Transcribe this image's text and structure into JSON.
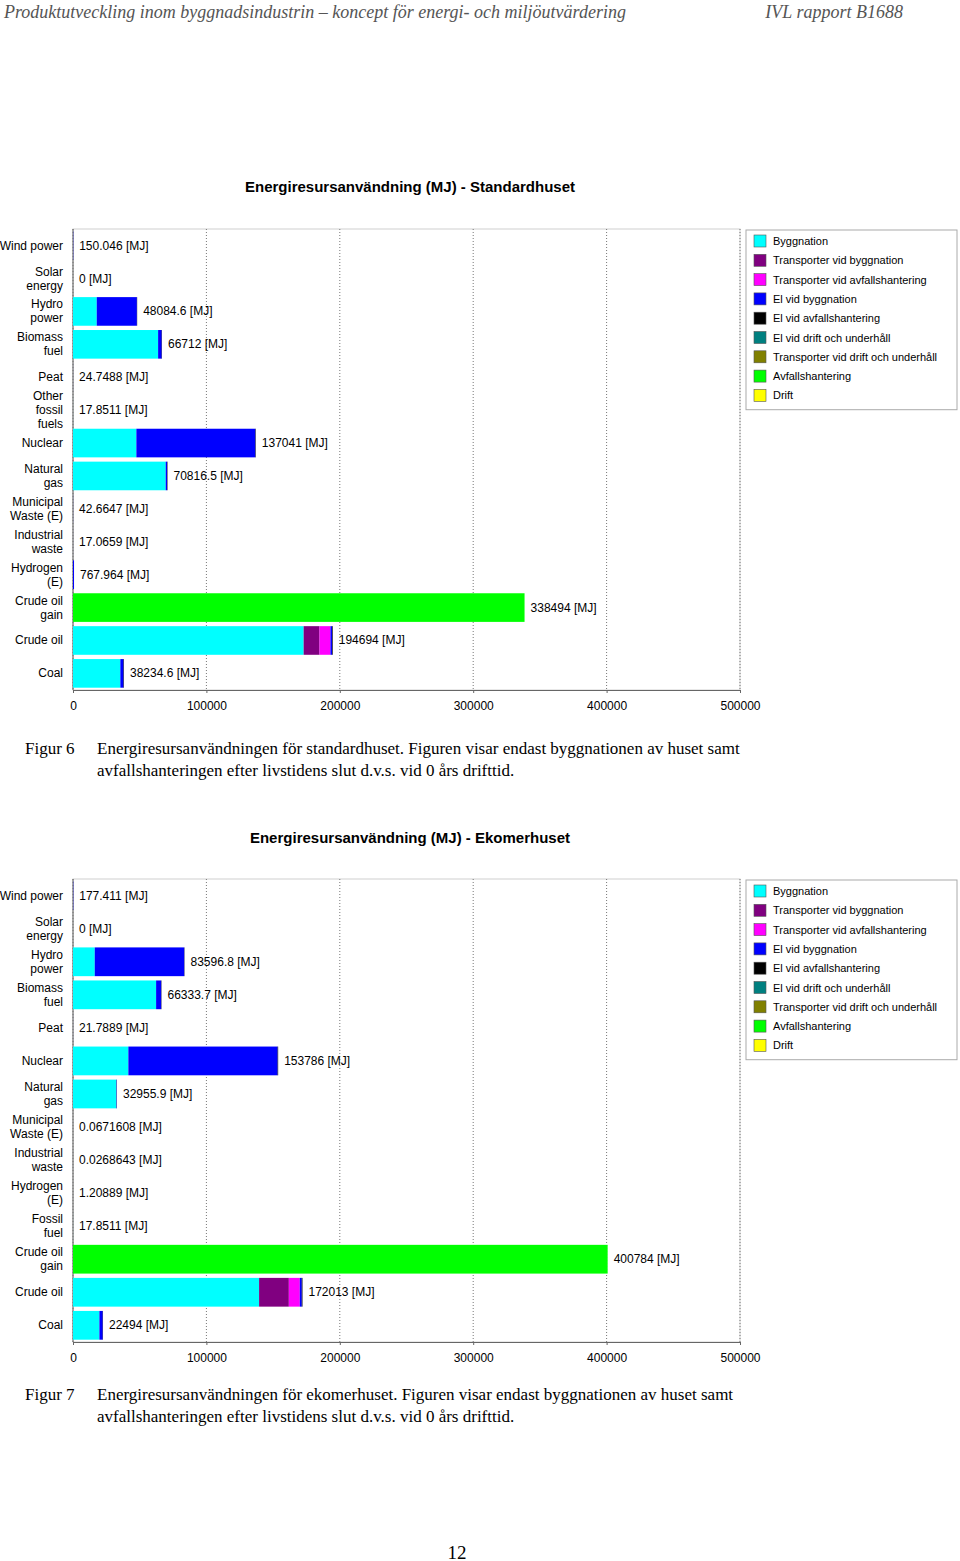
{
  "page": {
    "header_left": "Produktutveckling inom byggnadsindustrin – koncept för energi- och miljöutvärdering",
    "header_right": "IVL rapport B1688",
    "page_number": "12"
  },
  "chart_data": [
    {
      "type": "bar",
      "orientation": "horizontal",
      "stacked": true,
      "grid": true,
      "legend": "top-right",
      "title": "Energiresursanvändning (MJ) - Standardhuset",
      "caption": {
        "label": "Figur 6",
        "text": "Energiresursanvändningen för standardhuset. Figuren visar endast byggnationen av huset samt avfallshanteringen efter livstidens slut d.v.s. vid 0 års drifttid."
      },
      "categories": [
        "Wind power",
        "Solar energy",
        "Hydro power",
        "Biomass fuel",
        "Peat",
        "Other fossil fuels",
        "Nuclear",
        "Natural gas",
        "Municipal Waste (E)",
        "Industrial waste",
        "Hydrogen (E)",
        "Crude oil gain",
        "Crude oil",
        "Coal"
      ],
      "xlim": [
        0,
        500000
      ],
      "xticks": [
        0,
        100000,
        200000,
        300000,
        400000,
        500000
      ],
      "totals": [
        150.046,
        0,
        48084.6,
        66712,
        24.7488,
        17.8511,
        137041,
        70816.5,
        42.6647,
        17.0659,
        767.964,
        338494,
        194694,
        38234.6
      ],
      "total_labels": [
        "150.046 [MJ]",
        "0 [MJ]",
        "48084.6 [MJ]",
        "66712 [MJ]",
        "24.7488 [MJ]",
        "17.8511 [MJ]",
        "137041 [MJ]",
        "70816.5 [MJ]",
        "42.6647 [MJ]",
        "17.0659 [MJ]",
        "767.964 [MJ]",
        "338494 [MJ]",
        "194694 [MJ]",
        "38234.6 [MJ]"
      ],
      "series": [
        {
          "name": "Byggnation",
          "color": "#00ffff",
          "values": [
            0,
            0,
            17800,
            63800,
            0,
            17.8511,
            47500,
            69500,
            0,
            0,
            0,
            0,
            172900,
            35500
          ]
        },
        {
          "name": "Transporter vid byggnation",
          "color": "#800080",
          "values": [
            0,
            0,
            0,
            0,
            0,
            0,
            0,
            0,
            0,
            0,
            0,
            0,
            11900,
            0
          ]
        },
        {
          "name": "Transporter vid avfallshantering",
          "color": "#ff00ff",
          "values": [
            0,
            0,
            0,
            0,
            0,
            0,
            0,
            0,
            0,
            0,
            0,
            0,
            8200,
            0
          ]
        },
        {
          "name": "El vid byggnation",
          "color": "#0000ff",
          "values": [
            150.046,
            0,
            30084.6,
            2700,
            24.7488,
            0,
            89200,
            1000,
            42.6647,
            17.0659,
            767.964,
            0,
            1200,
            2400
          ]
        },
        {
          "name": "El vid avfallshantering",
          "color": "#000000",
          "values": [
            0,
            0,
            200,
            212,
            0,
            0,
            341,
            316.5,
            0,
            0,
            0,
            0,
            494,
            334.6
          ]
        },
        {
          "name": "El vid drift och underhåll",
          "color": "#008080",
          "values": [
            0,
            0,
            0,
            0,
            0,
            0,
            0,
            0,
            0,
            0,
            0,
            0,
            0,
            0
          ]
        },
        {
          "name": "Transporter vid drift och underhåll",
          "color": "#808000",
          "values": [
            0,
            0,
            0,
            0,
            0,
            0,
            0,
            0,
            0,
            0,
            0,
            0,
            0,
            0
          ]
        },
        {
          "name": "Avfallshantering",
          "color": "#00ff00",
          "values": [
            0,
            0,
            0,
            0,
            0,
            0,
            0,
            0,
            0,
            0,
            0,
            338494,
            0,
            0
          ]
        },
        {
          "name": "Drift",
          "color": "#ffff00",
          "values": [
            0,
            0,
            0,
            0,
            0,
            0,
            0,
            0,
            0,
            0,
            0,
            0,
            0,
            0
          ]
        }
      ]
    },
    {
      "type": "bar",
      "orientation": "horizontal",
      "stacked": true,
      "grid": true,
      "legend": "top-right",
      "title": "Energiresursanvändning (MJ) - Ekomerhuset",
      "caption": {
        "label": "Figur 7",
        "text": "Energiresursanvändningen för ekomerhuset. Figuren visar endast byggnationen av huset samt avfallshanteringen efter livstidens slut d.v.s. vid 0 års drifttid."
      },
      "categories": [
        "Wind power",
        "Solar energy",
        "Hydro power",
        "Biomass fuel",
        "Peat",
        "Nuclear",
        "Natural gas",
        "Municipal Waste (E)",
        "Industrial waste",
        "Hydrogen (E)",
        "Fossil fuel",
        "Crude oil gain",
        "Crude oil",
        "Coal"
      ],
      "xlim": [
        0,
        500000
      ],
      "xticks": [
        0,
        100000,
        200000,
        300000,
        400000,
        500000
      ],
      "totals": [
        177.411,
        0,
        83596.8,
        66333.7,
        21.7889,
        153786,
        32955.9,
        0.0671608,
        0.0268643,
        1.20889,
        17.8511,
        400784,
        172013,
        22494
      ],
      "total_labels": [
        "177.411 [MJ]",
        "0 [MJ]",
        "83596.8 [MJ]",
        "66333.7 [MJ]",
        "21.7889 [MJ]",
        "153786 [MJ]",
        "32955.9 [MJ]",
        "0.0671608 [MJ]",
        "0.0268643 [MJ]",
        "1.20889 [MJ]",
        "17.8511 [MJ]",
        "400784 [MJ]",
        "172013 [MJ]",
        "22494 [MJ]"
      ],
      "series": [
        {
          "name": "Byggnation",
          "color": "#00ffff",
          "values": [
            0,
            0,
            16300,
            62300,
            0,
            41500,
            32500,
            0,
            0,
            0,
            17.8511,
            0,
            139500,
            19800
          ]
        },
        {
          "name": "Transporter vid byggnation",
          "color": "#800080",
          "values": [
            0,
            0,
            0,
            0,
            0,
            0,
            0,
            0,
            0,
            0,
            0,
            0,
            22300,
            0
          ]
        },
        {
          "name": "Transporter vid avfallshantering",
          "color": "#ff00ff",
          "values": [
            0,
            0,
            0,
            0,
            0,
            0,
            0,
            0,
            0,
            0,
            0,
            0,
            8200,
            0
          ]
        },
        {
          "name": "El vid byggnation",
          "color": "#0000ff",
          "values": [
            177.411,
            0,
            67100,
            3800,
            21.7889,
            111900,
            300,
            0.0671608,
            0.0268643,
            1.20889,
            0,
            0,
            1500,
            2500
          ]
        },
        {
          "name": "El vid avfallshantering",
          "color": "#000000",
          "values": [
            0,
            0,
            196.8,
            233.7,
            0,
            386,
            155.9,
            0,
            0,
            0,
            0,
            0,
            513,
            194
          ]
        },
        {
          "name": "El vid drift och underhåll",
          "color": "#008080",
          "values": [
            0,
            0,
            0,
            0,
            0,
            0,
            0,
            0,
            0,
            0,
            0,
            0,
            0,
            0
          ]
        },
        {
          "name": "Transporter vid drift och underhåll",
          "color": "#808000",
          "values": [
            0,
            0,
            0,
            0,
            0,
            0,
            0,
            0,
            0,
            0,
            0,
            0,
            0,
            0
          ]
        },
        {
          "name": "Avfallshantering",
          "color": "#00ff00",
          "values": [
            0,
            0,
            0,
            0,
            0,
            0,
            0,
            0,
            0,
            0,
            0,
            400784,
            0,
            0
          ]
        },
        {
          "name": "Drift",
          "color": "#ffff00",
          "values": [
            0,
            0,
            0,
            0,
            0,
            0,
            0,
            0,
            0,
            0,
            0,
            0,
            0,
            0
          ]
        }
      ]
    }
  ]
}
